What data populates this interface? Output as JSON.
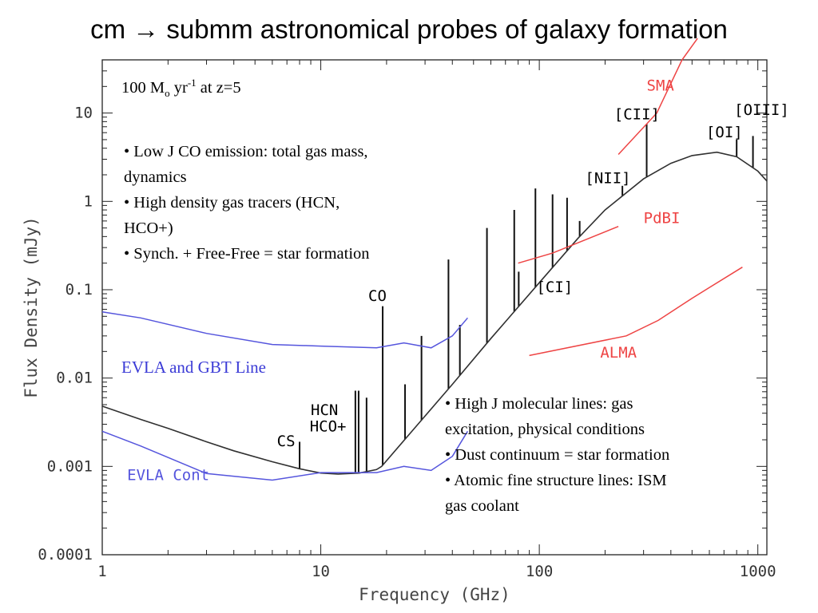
{
  "slide": {
    "title": "cm → submm  astronomical probes of galaxy formation",
    "condition": {
      "mass": "100 M",
      "sun_sub": "o",
      "rate": " yr",
      "rate_sup": "-1",
      "redshift": " at z=5"
    },
    "notes_top": [
      "• Low J CO emission: total gas mass,",
      "dynamics",
      "• High density gas tracers (HCN,",
      "HCO+)",
      "• Synch. + Free-Free = star formation"
    ],
    "notes_bottom": [
      "• High J molecular lines: gas",
      "excitation, physical conditions",
      "• Dust continuum = star formation",
      "• Atomic fine structure lines: ISM",
      "gas coolant"
    ],
    "evla_gbt_line_label": "EVLA and GBT Line"
  },
  "chart_data": {
    "type": "line",
    "xlabel": "Frequency (GHz)",
    "ylabel": "Flux Density (mJy)",
    "xscale": "log",
    "yscale": "log",
    "xlim": [
      1,
      1100
    ],
    "ylim": [
      0.0001,
      40
    ],
    "xticks": [
      {
        "value": 1,
        "label": "1"
      },
      {
        "value": 10,
        "label": "10"
      },
      {
        "value": 100,
        "label": "100"
      },
      {
        "value": 1000,
        "label": "1000"
      }
    ],
    "yticks": [
      {
        "value": 0.0001,
        "label": "0.0001"
      },
      {
        "value": 0.001,
        "label": "0.001"
      },
      {
        "value": 0.01,
        "label": "0.01"
      },
      {
        "value": 0.1,
        "label": "0.1"
      },
      {
        "value": 1,
        "label": "1"
      },
      {
        "value": 10,
        "label": "10"
      }
    ],
    "series": [
      {
        "name": "",
        "color": "#303030",
        "x": [
          1,
          1.5,
          2,
          3,
          4,
          6,
          8,
          10,
          12,
          15,
          18,
          19,
          25,
          40,
          60,
          100,
          150,
          200,
          300,
          400,
          500,
          650,
          800,
          1000,
          1100
        ],
        "y": [
          0.0048,
          0.0034,
          0.0027,
          0.0019,
          0.0015,
          0.00113,
          0.00094,
          0.00084,
          0.00082,
          0.00084,
          0.00092,
          0.001,
          0.0022,
          0.0085,
          0.028,
          0.12,
          0.38,
          0.8,
          1.8,
          2.7,
          3.3,
          3.6,
          3.2,
          2.2,
          1.7
        ]
      },
      {
        "name": "EVLA and GBT Line",
        "color": "#5555dd",
        "x": [
          1,
          1.5,
          3,
          6,
          10,
          18,
          24,
          32,
          40,
          47
        ],
        "y": [
          0.056,
          0.048,
          0.032,
          0.024,
          0.023,
          0.022,
          0.025,
          0.022,
          0.03,
          0.048
        ]
      },
      {
        "name": "EVLA Cont",
        "color": "#5555dd",
        "x": [
          1,
          1.5,
          3,
          6,
          10,
          18,
          24,
          32,
          40,
          47
        ],
        "y": [
          0.0025,
          0.0017,
          0.00083,
          0.0007,
          0.00085,
          0.00085,
          0.001,
          0.0009,
          0.0013,
          0.0025
        ]
      },
      {
        "name": "SMA",
        "color": "#ee4444",
        "x": [
          230,
          345,
          450,
          530
        ],
        "y": [
          3.4,
          10,
          40,
          70
        ]
      },
      {
        "name": "PdBI",
        "color": "#ee4444",
        "x": [
          80,
          115,
          230
        ],
        "y": [
          0.2,
          0.26,
          0.52
        ]
      },
      {
        "name": "ALMA",
        "color": "#ee4444",
        "x": [
          90,
          250,
          350,
          500,
          850
        ],
        "y": [
          0.018,
          0.03,
          0.045,
          0.08,
          0.18
        ]
      }
    ],
    "spectral_lines": [
      {
        "x": 8.0,
        "y_top": 0.0019
      },
      {
        "x": 14.4,
        "y_top": 0.0072
      },
      {
        "x": 14.9,
        "y_top": 0.0072
      },
      {
        "x": 16.2,
        "y_top": 0.006
      },
      {
        "x": 19.2,
        "y_top": 0.065
      },
      {
        "x": 24.3,
        "y_top": 0.0085
      },
      {
        "x": 28.9,
        "y_top": 0.03
      },
      {
        "x": 38.4,
        "y_top": 0.22
      },
      {
        "x": 43.3,
        "y_top": 0.04
      },
      {
        "x": 57.6,
        "y_top": 0.5
      },
      {
        "x": 76.8,
        "y_top": 0.8
      },
      {
        "x": 80.5,
        "y_top": 0.16
      },
      {
        "x": 96,
        "y_top": 1.4
      },
      {
        "x": 115,
        "y_top": 1.2
      },
      {
        "x": 134,
        "y_top": 1.1
      },
      {
        "x": 153,
        "y_top": 0.6
      },
      {
        "x": 240,
        "y_top": 1.5
      },
      {
        "x": 310,
        "y_top": 7.5
      },
      {
        "x": 800,
        "y_top": 5
      },
      {
        "x": 950,
        "y_top": 5.5
      }
    ],
    "annotations": [
      {
        "text": "CS",
        "x": 6.3,
        "y": 0.0017,
        "color": "#000000"
      },
      {
        "text": "HCN",
        "x": 9.0,
        "y": 0.0038,
        "color": "#000000"
      },
      {
        "text": "HCO+",
        "x": 8.9,
        "y": 0.0025,
        "color": "#000000"
      },
      {
        "text": "CO",
        "x": 16.5,
        "y": 0.075,
        "color": "#000000"
      },
      {
        "text": "[CI]",
        "x": 97,
        "y": 0.094,
        "color": "#000000"
      },
      {
        "text": "[NII]",
        "x": 162,
        "y": 1.6,
        "color": "#000000"
      },
      {
        "text": "[CII]",
        "x": 220,
        "y": 8.5,
        "color": "#000000"
      },
      {
        "text": "[OI]",
        "x": 580,
        "y": 5.3,
        "color": "#000000"
      },
      {
        "text": "[OIII]",
        "x": 780,
        "y": 9.5,
        "color": "#000000"
      },
      {
        "text": "SMA",
        "x": 310,
        "y": 18,
        "color": "#ee4444"
      },
      {
        "text": "PdBI",
        "x": 300,
        "y": 0.57,
        "color": "#ee4444"
      },
      {
        "text": "ALMA",
        "x": 190,
        "y": 0.017,
        "color": "#ee4444"
      },
      {
        "text": "EVLA Cont",
        "x": 1.3,
        "y": 0.0007,
        "color": "#5555dd"
      }
    ],
    "grid": false,
    "legend": "none"
  }
}
